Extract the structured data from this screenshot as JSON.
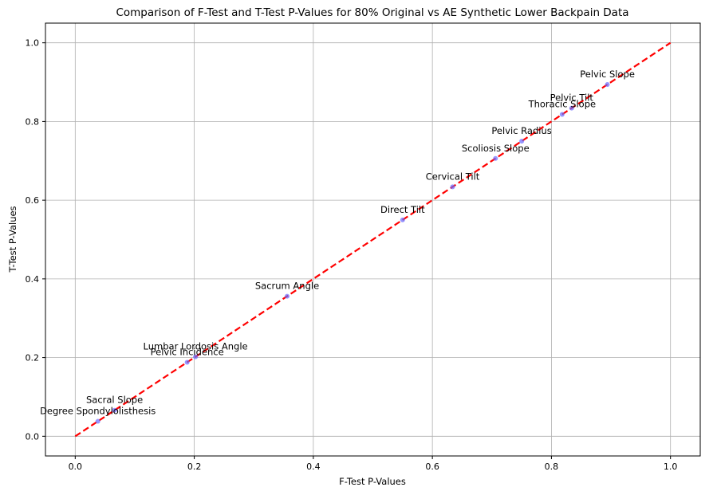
{
  "chart_data": {
    "type": "scatter",
    "title": "Comparison of F-Test and T-Test P-Values for 80% Original vs AE Synthetic Lower Backpain Data",
    "xlabel": "F-Test P-Values",
    "ylabel": "T-Test P-Values",
    "xlim": [
      -0.05,
      1.05
    ],
    "ylim": [
      -0.05,
      1.05
    ],
    "xticks": [
      "0.0",
      "0.2",
      "0.4",
      "0.6",
      "0.8",
      "1.0"
    ],
    "yticks": [
      "0.0",
      "0.2",
      "0.4",
      "0.6",
      "0.8",
      "1.0"
    ],
    "grid": true,
    "point_color": "#6a6aff",
    "line_color": "#ff0000",
    "reference_line": {
      "style": "dashed",
      "from": [
        0,
        0
      ],
      "to": [
        1,
        1
      ]
    },
    "points": [
      {
        "label": "Degree Spondylolisthesis",
        "x": 0.038,
        "y": 0.038
      },
      {
        "label": "Sacral Slope",
        "x": 0.066,
        "y": 0.066
      },
      {
        "label": "Pelvic Incidence",
        "x": 0.188,
        "y": 0.188
      },
      {
        "label": "Lumbar Lordosis Angle",
        "x": 0.202,
        "y": 0.202
      },
      {
        "label": "Sacrum Angle",
        "x": 0.356,
        "y": 0.356
      },
      {
        "label": "Direct Tilt",
        "x": 0.55,
        "y": 0.55
      },
      {
        "label": "Cervical Tilt",
        "x": 0.634,
        "y": 0.634
      },
      {
        "label": "Scoliosis Slope",
        "x": 0.706,
        "y": 0.706
      },
      {
        "label": "Pelvic Radius",
        "x": 0.75,
        "y": 0.75
      },
      {
        "label": "Thoracic Slope",
        "x": 0.818,
        "y": 0.818
      },
      {
        "label": "Pelvic Tilt",
        "x": 0.834,
        "y": 0.834
      },
      {
        "label": "Pelvic Slope",
        "x": 0.894,
        "y": 0.894
      }
    ]
  }
}
